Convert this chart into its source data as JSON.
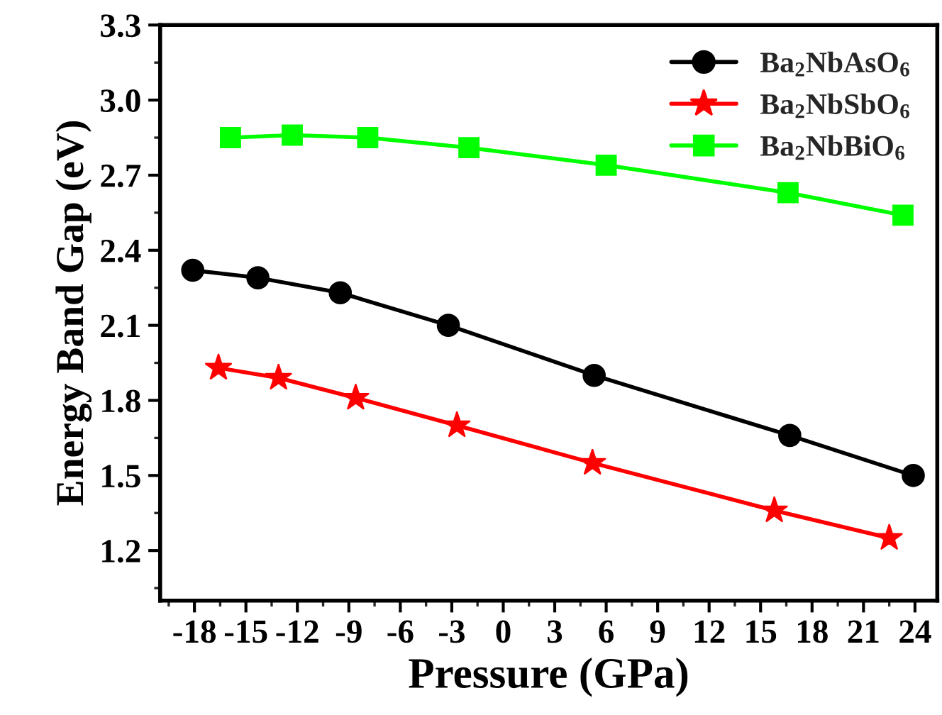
{
  "chart_data": {
    "type": "line",
    "xlabel": "Pressure (GPa)",
    "ylabel": "Energy Band Gap (eV)",
    "xlim": [
      -20,
      25.3
    ],
    "xticks": [
      -18,
      -15,
      -12,
      -9,
      -6,
      -3,
      0,
      3,
      6,
      9,
      12,
      15,
      18,
      21,
      24
    ],
    "ylim": [
      1.0,
      3.3
    ],
    "yticks": [
      1.2,
      1.5,
      1.8,
      2.1,
      2.4,
      2.7,
      {
        "value": 3.0,
        "label": "3.0"
      },
      3.3
    ],
    "grid": false,
    "legend": "top right",
    "series": [
      {
        "name": "Ba$_{2}$NbAsO$_{6}$",
        "color": "#000000",
        "marker": "circle",
        "x": [
          -18.1,
          -14.3,
          -9.5,
          -3.2,
          5.3,
          16.7,
          23.9
        ],
        "values": [
          2.32,
          2.29,
          2.23,
          2.1,
          1.9,
          1.66,
          1.5
        ]
      },
      {
        "name": "Ba$_{2}$NbSbO$_{6}$",
        "color": "#ff0000",
        "marker": "star",
        "x": [
          -16.6,
          -13.1,
          -8.6,
          -2.7,
          5.2,
          15.8,
          22.5
        ],
        "values": [
          1.93,
          1.89,
          1.81,
          1.7,
          1.55,
          1.36,
          1.25
        ]
      },
      {
        "name": "Ba$_{2}$NbBiO$_{6}$",
        "color": "#00ff00",
        "marker": "square",
        "x": [
          -15.9,
          -12.3,
          -7.9,
          -2.0,
          6.0,
          16.6,
          23.3
        ],
        "values": [
          2.85,
          2.86,
          2.85,
          2.81,
          2.74,
          2.63,
          2.54
        ]
      }
    ]
  }
}
